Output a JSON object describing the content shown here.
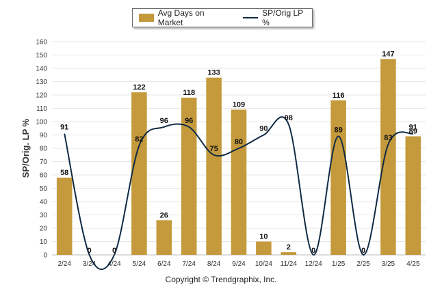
{
  "chart_data": {
    "type": "bar",
    "categories": [
      "2/24",
      "3/24",
      "4/24",
      "5/24",
      "6/24",
      "7/24",
      "8/24",
      "9/24",
      "10/24",
      "11/24",
      "12/24",
      "1/25",
      "2/25",
      "3/25",
      "4/25"
    ],
    "series": [
      {
        "name": "Avg Days on Market",
        "type": "bar",
        "color": "#C49A3C",
        "values": [
          58,
          0,
          0,
          122,
          26,
          118,
          133,
          109,
          10,
          2,
          0,
          116,
          0,
          147,
          89
        ]
      },
      {
        "name": "SP/Orig LP %",
        "type": "line",
        "color": "#0F2A44",
        "values": [
          91,
          0,
          0,
          82,
          96,
          96,
          75,
          80,
          90,
          98,
          0,
          89,
          0,
          83,
          91
        ]
      }
    ],
    "line_labels": [
      "91",
      "0",
      "0",
      "82",
      "96",
      "96",
      "75",
      "80",
      "90",
      "98",
      "0",
      "89",
      "0",
      "83",
      "91"
    ],
    "bar_labels": [
      "58",
      "0",
      "0",
      "122",
      "26",
      "118",
      "133",
      "109",
      "10",
      "2",
      "0",
      "116",
      "0",
      "147",
      "89"
    ],
    "ylabel": "SP/Orig. LP %",
    "xlabel": "",
    "ylim": [
      0,
      160
    ],
    "yticks": [
      "0",
      "10",
      "20",
      "30",
      "40",
      "50",
      "60",
      "70",
      "80",
      "90",
      "100",
      "110",
      "120",
      "130",
      "140",
      "150",
      "160"
    ],
    "grid": true,
    "legend_position": "top-center"
  },
  "legend": {
    "bar_label": "Avg Days on Market",
    "line_label": "SP/Orig LP %"
  },
  "footer": {
    "copyright": "Copyright © Trendgraphix, Inc."
  },
  "colors": {
    "bar": "#C49A3C",
    "line": "#0F2A44",
    "grid": "#e6e6e6"
  }
}
